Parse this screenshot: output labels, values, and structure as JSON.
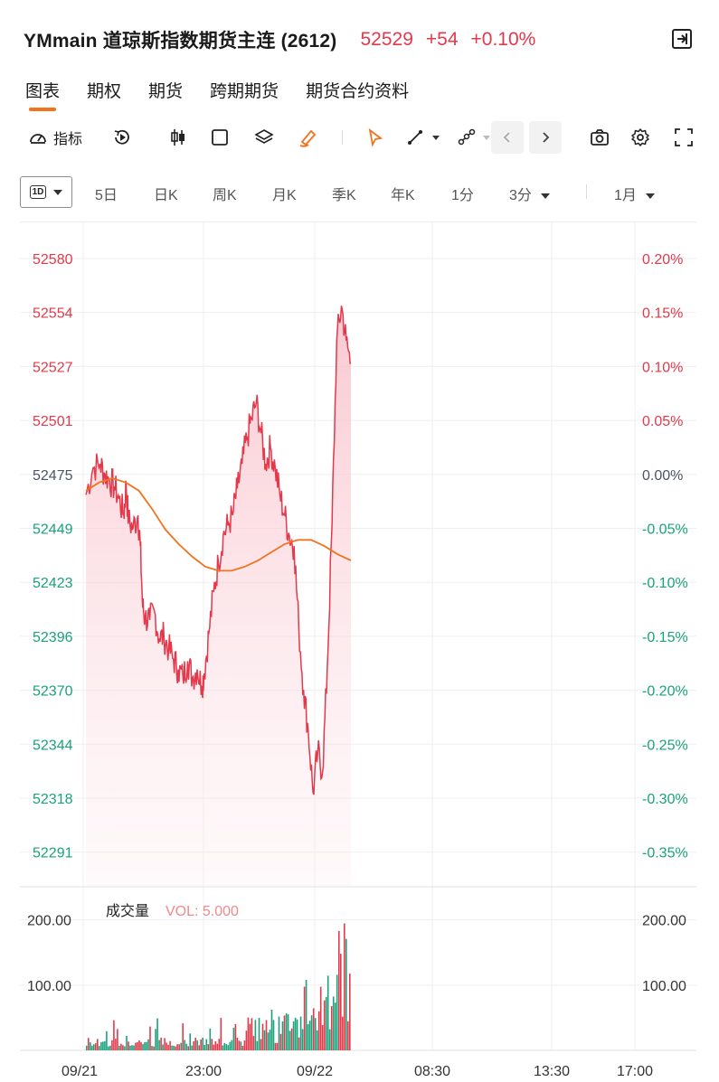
{
  "header": {
    "title": "YMmain 道琼斯指数期货主连 (2612)",
    "price": "52529",
    "change": "+54",
    "change_pct": "+0.10%"
  },
  "tabs": [
    {
      "label": "图表",
      "active": true
    },
    {
      "label": "期权",
      "active": false
    },
    {
      "label": "期货",
      "active": false
    },
    {
      "label": "跨期期货",
      "active": false
    },
    {
      "label": "期货合约资料",
      "active": false
    }
  ],
  "toolbar": {
    "indicator_label": "指标",
    "icons": [
      "gauge-icon",
      "replay-icon",
      "candlestick-icon",
      "square-icon",
      "layers-icon",
      "brush-icon",
      "cursor-icon",
      "line-tool-icon",
      "node-tool-icon",
      "chevron-left-icon",
      "chevron-right-icon",
      "camera-icon",
      "gear-icon",
      "fullscreen-icon"
    ]
  },
  "periods": {
    "selected": "1D",
    "items": [
      "5日",
      "日K",
      "周K",
      "月K",
      "季K",
      "年K",
      "1分"
    ],
    "minute_select": "3分",
    "month_select": "1月"
  },
  "colors": {
    "up": "#e5384a",
    "down": "#1aa27a",
    "neutral": "#4a5568",
    "avg_line": "#f0731e",
    "grid": "#efefef"
  },
  "chart_data": {
    "type": "line",
    "price_axis": {
      "ticks": [
        52580,
        52554,
        52527,
        52501,
        52475,
        52449,
        52423,
        52396,
        52370,
        52344,
        52318,
        52291
      ],
      "ylim": [
        52291,
        52580
      ],
      "prev_close": 52475
    },
    "pct_axis": {
      "ticks": [
        "0.20%",
        "0.15%",
        "0.10%",
        "0.05%",
        "0.00%",
        "-0.05%",
        "-0.10%",
        "-0.15%",
        "-0.20%",
        "-0.25%",
        "-0.30%",
        "-0.35%"
      ]
    },
    "x_axis": {
      "labels": [
        "09/21",
        "23:00",
        "09/22",
        "08:30",
        "13:30",
        "17:00"
      ]
    },
    "price_series": {
      "name": "",
      "x": [
        0.0,
        0.03,
        0.06,
        0.08,
        0.1,
        0.12,
        0.14,
        0.16,
        0.17,
        0.18,
        0.2,
        0.22,
        0.23,
        0.24,
        0.25,
        0.27,
        0.29,
        0.31,
        0.33,
        0.35,
        0.37,
        0.39,
        0.41,
        0.43,
        0.45,
        0.47,
        0.49,
        0.5,
        0.52,
        0.54,
        0.56,
        0.58,
        0.6,
        0.62,
        0.64,
        0.66,
        0.68,
        0.7,
        0.72,
        0.74,
        0.76,
        0.78,
        0.8,
        0.82,
        0.84,
        0.86,
        0.88,
        0.9,
        0.92,
        0.94,
        0.96,
        0.98,
        1.0,
        1.02,
        1.04,
        1.06,
        1.08,
        1.1,
        1.12
      ],
      "values": [
        52465,
        52478,
        52480,
        52475,
        52472,
        52469,
        52463,
        52455,
        52470,
        52452,
        52449,
        52455,
        52440,
        52410,
        52405,
        52404,
        52408,
        52395,
        52396,
        52390,
        52385,
        52380,
        52376,
        52384,
        52376,
        52380,
        52372,
        52378,
        52398,
        52418,
        52432,
        52445,
        52450,
        52455,
        52468,
        52480,
        52492,
        52502,
        52510,
        52495,
        52480,
        52488,
        52478,
        52465,
        52455,
        52445,
        52440,
        52400,
        52370,
        52350,
        52320,
        52340,
        52330,
        52380,
        52450,
        52540,
        52557,
        52540,
        52529
      ]
    },
    "avg_series": {
      "name": "",
      "x": [
        0.0,
        0.05,
        0.1,
        0.15,
        0.2,
        0.25,
        0.3,
        0.35,
        0.4,
        0.45,
        0.5,
        0.55,
        0.6,
        0.65,
        0.7,
        0.75,
        0.8,
        0.85,
        0.9,
        0.95,
        1.0
      ],
      "values": [
        52467,
        52471,
        52473,
        52471,
        52467,
        52458,
        52448,
        52441,
        52435,
        52430,
        52428,
        52428,
        52430,
        52433,
        52437,
        52441,
        52443,
        52443,
        52440,
        52436,
        52433
      ]
    },
    "volume": {
      "label": "成交量",
      "indicator_text": "VOL: 5.000",
      "ticks": [
        "200.00",
        "100.00"
      ],
      "ylim": [
        0,
        230
      ]
    },
    "grid": true
  }
}
